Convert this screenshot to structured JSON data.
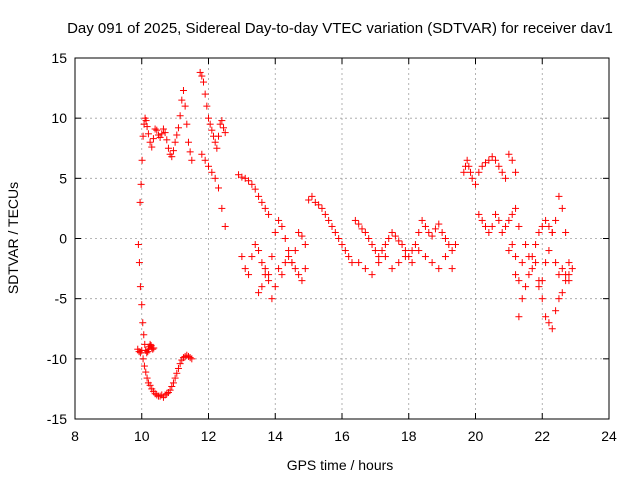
{
  "chart_data": {
    "type": "scatter",
    "title": "Day 091 of 2025, Sidereal Day-to-day VTEC variation (SDTVAR) for receiver dav1",
    "xlabel": "GPS time / hours",
    "ylabel": "SDTVAR / TECUs",
    "xlim": [
      8,
      24
    ],
    "ylim": [
      -15,
      15
    ],
    "x_ticks": [
      8,
      10,
      12,
      14,
      16,
      18,
      20,
      22,
      24
    ],
    "y_ticks": [
      -15,
      -10,
      -5,
      0,
      5,
      10,
      15
    ],
    "grid": true,
    "marker": "+",
    "color": "#ff0000",
    "series": [
      {
        "name": "dav1",
        "x": [
          9.95,
          9.98,
          10.01,
          10.04,
          10.07,
          10.1,
          10.13,
          10.16,
          10.2,
          10.25,
          10.3,
          10.35,
          10.4,
          10.45,
          10.5,
          10.55,
          10.6,
          10.65,
          10.7,
          10.75,
          10.8,
          10.85,
          10.9,
          10.95,
          11.0,
          11.05,
          11.1,
          11.15,
          11.2,
          11.25,
          11.3,
          11.35,
          11.4,
          11.45,
          11.5,
          9.9,
          9.93,
          9.96,
          10.0,
          10.03,
          10.06,
          10.09,
          10.12,
          10.15,
          10.18,
          10.2,
          10.22,
          10.25,
          10.28,
          10.3,
          10.33,
          10.36,
          9.88,
          9.92,
          9.96,
          10.0,
          10.04,
          10.08,
          10.12,
          10.16,
          10.2,
          10.25,
          10.3,
          10.35,
          10.4,
          10.45,
          10.5,
          10.55,
          10.6,
          10.65,
          10.7,
          10.75,
          10.8,
          10.85,
          10.9,
          10.95,
          11.0,
          11.05,
          11.1,
          11.15,
          11.2,
          11.25,
          11.3,
          11.35,
          11.4,
          11.45,
          11.5,
          11.75,
          11.8,
          11.85,
          11.9,
          11.95,
          12.0,
          12.05,
          12.1,
          12.15,
          12.2,
          12.25,
          12.3,
          12.35,
          12.4,
          12.45,
          12.5,
          11.8,
          11.9,
          12.0,
          12.1,
          12.2,
          12.3,
          12.4,
          12.5,
          12.9,
          13.0,
          13.1,
          13.2,
          13.3,
          13.4,
          13.5,
          13.6,
          13.7,
          13.8,
          13.0,
          13.1,
          13.2,
          13.3,
          13.4,
          13.5,
          13.6,
          13.7,
          13.8,
          13.9,
          14.0,
          14.1,
          14.2,
          14.3,
          14.4,
          14.5,
          14.6,
          14.7,
          14.8,
          14.9,
          13.5,
          13.6,
          13.7,
          13.8,
          13.9,
          14.0,
          14.1,
          14.2,
          14.3,
          14.4,
          14.5,
          14.6,
          14.7,
          14.8,
          14.9,
          15.0,
          15.1,
          15.2,
          15.3,
          15.4,
          15.5,
          15.6,
          15.7,
          15.8,
          15.9,
          16.0,
          16.1,
          16.2,
          16.3,
          16.4,
          16.5,
          16.6,
          16.7,
          16.8,
          16.9,
          17.0,
          17.1,
          17.2,
          17.3,
          17.4,
          17.5,
          17.6,
          17.7,
          17.8,
          17.9,
          18.0,
          18.1,
          18.2,
          18.3,
          18.4,
          18.5,
          18.6,
          18.7,
          18.8,
          18.9,
          19.0,
          19.1,
          19.2,
          19.3,
          19.4,
          16.5,
          16.7,
          16.9,
          17.1,
          17.3,
          17.5,
          17.7,
          17.9,
          18.1,
          18.3,
          18.5,
          18.7,
          18.9,
          19.1,
          19.3,
          19.65,
          19.7,
          19.75,
          19.8,
          19.85,
          19.9,
          20.0,
          20.1,
          20.2,
          20.3,
          20.4,
          20.5,
          20.6,
          20.7,
          20.8,
          20.9,
          21.0,
          21.1,
          21.2,
          20.1,
          20.2,
          20.3,
          20.4,
          20.5,
          20.6,
          20.7,
          20.8,
          20.9,
          21.0,
          21.1,
          21.2,
          21.3,
          21.0,
          21.1,
          21.2,
          21.3,
          21.4,
          21.5,
          21.6,
          21.7,
          21.8,
          21.9,
          22.0,
          22.1,
          22.2,
          22.3,
          22.4,
          22.5,
          22.6,
          22.7,
          22.8,
          22.9,
          21.2,
          21.3,
          21.4,
          21.5,
          21.6,
          21.7,
          21.8,
          21.9,
          22.0,
          22.1,
          22.2,
          22.3,
          22.4,
          22.5,
          22.6,
          22.7,
          22.8,
          21.9,
          22.0,
          22.1,
          22.2,
          22.3,
          22.4,
          22.5,
          22.6,
          22.7,
          22.8
        ],
        "y": [
          3.0,
          4.5,
          6.5,
          8.5,
          9.5,
          10.0,
          9.8,
          9.3,
          8.7,
          8.0,
          7.6,
          8.3,
          9.1,
          9.0,
          8.6,
          8.4,
          8.7,
          9.1,
          8.8,
          8.2,
          7.5,
          7.0,
          6.8,
          7.3,
          8.0,
          8.6,
          9.2,
          10.2,
          11.5,
          12.3,
          11.0,
          9.5,
          8.0,
          7.2,
          6.5,
          -0.5,
          -2.0,
          -4.0,
          -5.5,
          -7.0,
          -8.0,
          -8.8,
          -9.3,
          -9.5,
          -9.4,
          -9.2,
          -9.0,
          -8.8,
          -8.9,
          -9.1,
          -9.2,
          -9.1,
          -9.2,
          -9.4,
          -9.5,
          -9.3,
          -10.0,
          -10.6,
          -11.1,
          -11.6,
          -12.0,
          -12.2,
          -12.5,
          -12.7,
          -12.9,
          -13.0,
          -13.1,
          -13.1,
          -13.0,
          -13.2,
          -13.0,
          -12.9,
          -12.8,
          -12.6,
          -12.3,
          -12.0,
          -11.6,
          -11.2,
          -10.8,
          -10.4,
          -10.1,
          -9.9,
          -9.8,
          -9.7,
          -9.8,
          -9.9,
          -10.0,
          13.8,
          13.5,
          13.0,
          12.0,
          11.0,
          10.0,
          9.5,
          9.0,
          8.5,
          8.0,
          7.5,
          8.5,
          9.5,
          9.8,
          9.2,
          8.8,
          7.0,
          6.5,
          6.0,
          5.5,
          5.0,
          4.2,
          2.5,
          1.0,
          5.3,
          5.1,
          5.0,
          4.8,
          4.5,
          4.1,
          3.5,
          3.0,
          2.5,
          2.0,
          -1.5,
          -2.5,
          -3.0,
          -1.5,
          -0.5,
          -1.0,
          -2.0,
          -2.5,
          -3.0,
          -1.5,
          0.5,
          1.5,
          1.0,
          0.0,
          -1.0,
          -2.0,
          -1.0,
          0.5,
          0.2,
          -0.5,
          -4.5,
          -4.0,
          -3.0,
          -3.5,
          -5.0,
          -4.0,
          -2.5,
          -3.0,
          -2.0,
          -1.5,
          -2.0,
          -2.5,
          -3.0,
          -3.5,
          -2.5,
          3.2,
          3.5,
          3.0,
          2.8,
          2.5,
          2.0,
          1.5,
          1.0,
          0.5,
          0.0,
          -0.5,
          -1.0,
          -1.5,
          -2.0,
          1.5,
          1.2,
          0.8,
          0.5,
          0.0,
          -0.5,
          -1.0,
          -1.5,
          -1.0,
          -0.5,
          0.0,
          0.5,
          0.2,
          -0.2,
          -0.5,
          -1.0,
          -1.5,
          -1.0,
          -0.5,
          0.5,
          1.5,
          1.0,
          0.5,
          0.2,
          0.8,
          1.2,
          0.5,
          0.0,
          -0.5,
          -1.0,
          -0.5,
          -2.0,
          -2.5,
          -3.0,
          -2.0,
          -1.5,
          -2.5,
          -2.0,
          -1.5,
          -2.0,
          -1.0,
          -1.5,
          -2.0,
          -2.5,
          -1.5,
          -2.5,
          5.5,
          6.0,
          6.5,
          6.0,
          5.5,
          5.0,
          4.5,
          5.5,
          6.0,
          6.3,
          6.5,
          6.8,
          6.5,
          6.0,
          5.5,
          5.0,
          7.0,
          6.5,
          5.5,
          2.0,
          1.5,
          1.0,
          0.5,
          1.0,
          2.0,
          1.5,
          0.5,
          1.0,
          1.5,
          2.0,
          2.5,
          1.0,
          -1.0,
          -0.5,
          -3.0,
          -6.5,
          -2.0,
          -0.5,
          -1.5,
          -2.5,
          -0.5,
          0.5,
          1.0,
          1.5,
          1.0,
          0.5,
          -2.0,
          -3.0,
          -2.5,
          -3.0,
          -3.5,
          -2.5,
          -1.5,
          -3.5,
          -5.0,
          -4.0,
          -3.0,
          -1.5,
          -2.0,
          -3.5,
          -5.0,
          -6.5,
          -7.0,
          -7.5,
          -6.0,
          -5.0,
          -4.5,
          -3.5,
          -3.0,
          -4.0,
          -3.5,
          -2.0,
          -1.0,
          0.5,
          1.5,
          3.5,
          2.5,
          0.5,
          -2.0
        ]
      }
    ]
  }
}
